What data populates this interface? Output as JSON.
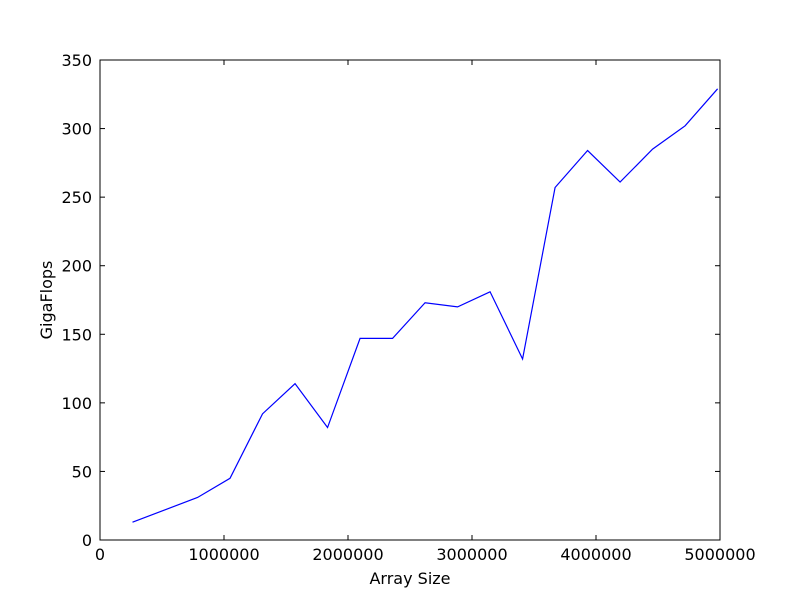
{
  "chart_data": {
    "type": "line",
    "title": "",
    "xlabel": "Array Size",
    "ylabel": "GigaFlops",
    "xlim": [
      0,
      5000000
    ],
    "ylim": [
      0,
      350
    ],
    "xticks": [
      0,
      1000000,
      2000000,
      3000000,
      4000000,
      5000000
    ],
    "xtick_labels": [
      "0",
      "1000000",
      "2000000",
      "3000000",
      "4000000",
      "5000000"
    ],
    "yticks": [
      0,
      50,
      100,
      150,
      200,
      250,
      300,
      350
    ],
    "ytick_labels": [
      "0",
      "50",
      "100",
      "150",
      "200",
      "250",
      "300",
      "350"
    ],
    "grid": false,
    "series": [
      {
        "name": "GigaFlops",
        "color": "#0000ff",
        "x": [
          262144,
          786432,
          1048576,
          1310720,
          1572864,
          1835008,
          2097152,
          2359296,
          2621440,
          2883584,
          3145728,
          3407872,
          3670016,
          3932160,
          4194304,
          4456448,
          4718592,
          4980736
        ],
        "y": [
          13,
          31,
          45,
          92,
          114,
          82,
          147,
          147,
          173,
          170,
          181,
          132,
          257,
          284,
          261,
          285,
          302,
          329
        ]
      }
    ]
  }
}
